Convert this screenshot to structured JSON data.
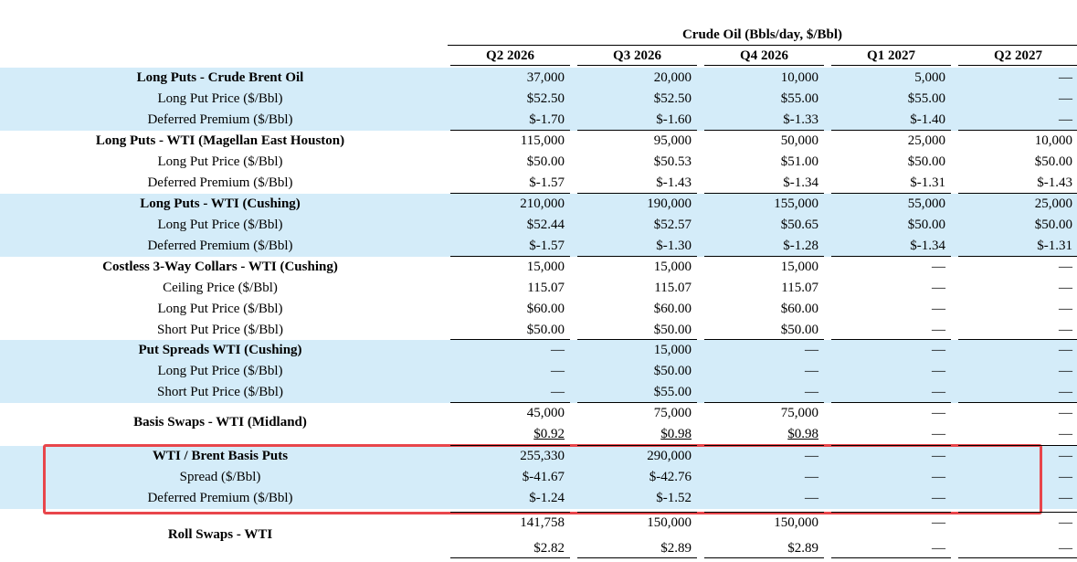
{
  "title": "Crude Oil (Bbls/day, $/Bbl)",
  "columns": [
    "Q2 2026",
    "Q3 2026",
    "Q4 2026",
    "Q1 2027",
    "Q2 2027"
  ],
  "dash": "—",
  "groups": [
    {
      "name": "Long Puts - Crude Brent Oil",
      "shaded": true,
      "rows": [
        {
          "label": "Long Puts - Crude Brent Oil",
          "bold": true,
          "values": [
            "37,000",
            "20,000",
            "10,000",
            "5,000",
            "—"
          ]
        },
        {
          "label": "Long Put Price ($/Bbl)",
          "bold": false,
          "values": [
            "$52.50",
            "$52.50",
            "$55.00",
            "$55.00",
            "—"
          ]
        },
        {
          "label": "Deferred Premium ($/Bbl)",
          "bold": false,
          "values": [
            "$-1.70",
            "$-1.60",
            "$-1.33",
            "$-1.40",
            "—"
          ]
        }
      ]
    },
    {
      "name": "Long Puts - WTI (Magellan East Houston)",
      "shaded": false,
      "rows": [
        {
          "label": "Long Puts - WTI (Magellan East Houston)",
          "bold": true,
          "values": [
            "115,000",
            "95,000",
            "50,000",
            "25,000",
            "10,000"
          ]
        },
        {
          "label": "Long Put Price ($/Bbl)",
          "bold": false,
          "values": [
            "$50.00",
            "$50.53",
            "$51.00",
            "$50.00",
            "$50.00"
          ]
        },
        {
          "label": "Deferred Premium ($/Bbl)",
          "bold": false,
          "values": [
            "$-1.57",
            "$-1.43",
            "$-1.34",
            "$-1.31",
            "$-1.43"
          ]
        }
      ]
    },
    {
      "name": "Long Puts - WTI (Cushing)",
      "shaded": true,
      "rows": [
        {
          "label": "Long Puts - WTI (Cushing)",
          "bold": true,
          "values": [
            "210,000",
            "190,000",
            "155,000",
            "55,000",
            "25,000"
          ]
        },
        {
          "label": "Long Put Price ($/Bbl)",
          "bold": false,
          "values": [
            "$52.44",
            "$52.57",
            "$50.65",
            "$50.00",
            "$50.00"
          ]
        },
        {
          "label": "Deferred Premium ($/Bbl)",
          "bold": false,
          "values": [
            "$-1.57",
            "$-1.30",
            "$-1.28",
            "$-1.34",
            "$-1.31"
          ]
        }
      ]
    },
    {
      "name": "Costless 3-Way Collars - WTI (Cushing)",
      "shaded": false,
      "rows": [
        {
          "label": "Costless 3-Way Collars - WTI (Cushing)",
          "bold": true,
          "values": [
            "15,000",
            "15,000",
            "15,000",
            "—",
            "—"
          ]
        },
        {
          "label": "Ceiling Price ($/Bbl)",
          "bold": false,
          "values": [
            "115.07",
            "115.07",
            "115.07",
            "—",
            "—"
          ]
        },
        {
          "label": "Long Put Price ($/Bbl)",
          "bold": false,
          "values": [
            "$60.00",
            "$60.00",
            "$60.00",
            "—",
            "—"
          ]
        },
        {
          "label": "Short Put Price ($/Bbl)",
          "bold": false,
          "values": [
            "$50.00",
            "$50.00",
            "$50.00",
            "—",
            "—"
          ]
        }
      ]
    },
    {
      "name": "Put Spreads WTI (Cushing)",
      "shaded": true,
      "rows": [
        {
          "label": "Put Spreads WTI (Cushing)",
          "bold": true,
          "values": [
            "—",
            "15,000",
            "—",
            "—",
            "—"
          ]
        },
        {
          "label": "Long Put Price ($/Bbl)",
          "bold": false,
          "values": [
            "—",
            "$50.00",
            "—",
            "—",
            "—"
          ]
        },
        {
          "label": "Short Put Price ($/Bbl)",
          "bold": false,
          "values": [
            "—",
            "$55.00",
            "—",
            "—",
            "—"
          ]
        }
      ]
    },
    {
      "name": "Basis Swaps - WTI (Midland)",
      "shaded": false,
      "rows": [
        {
          "label": "",
          "bold": true,
          "values": [
            "45,000",
            "75,000",
            "75,000",
            "—",
            "—"
          ]
        },
        {
          "label": "",
          "bold": false,
          "values": [
            "$0.92",
            "$0.98",
            "$0.98",
            "—",
            "—"
          ]
        }
      ],
      "side_label": "Basis Swaps - WTI (Midland)"
    },
    {
      "name": "WTI / Brent Basis Puts",
      "shaded": true,
      "rows": [
        {
          "label": "WTI / Brent Basis Puts",
          "bold": true,
          "values": [
            "255,330",
            "290,000",
            "—",
            "—",
            "—"
          ]
        },
        {
          "label": "Spread ($/Bbl)",
          "bold": false,
          "values": [
            "$-41.67",
            "$-42.76",
            "—",
            "—",
            "—"
          ]
        },
        {
          "label": "Deferred Premium ($/Bbl)",
          "bold": false,
          "values": [
            "$-1.24",
            "$-1.52",
            "—",
            "—",
            "—"
          ]
        }
      ]
    },
    {
      "name": "Roll Swaps - WTI",
      "shaded": false,
      "rows": [
        {
          "label": "",
          "bold": true,
          "values": [
            "141,758",
            "150,000",
            "150,000",
            "—",
            "—"
          ]
        },
        {
          "label": "",
          "bold": false,
          "values": [
            "$2.82",
            "$2.89",
            "$2.89",
            "—",
            "—"
          ]
        }
      ],
      "side_label": "Roll Swaps - WTI"
    }
  ]
}
